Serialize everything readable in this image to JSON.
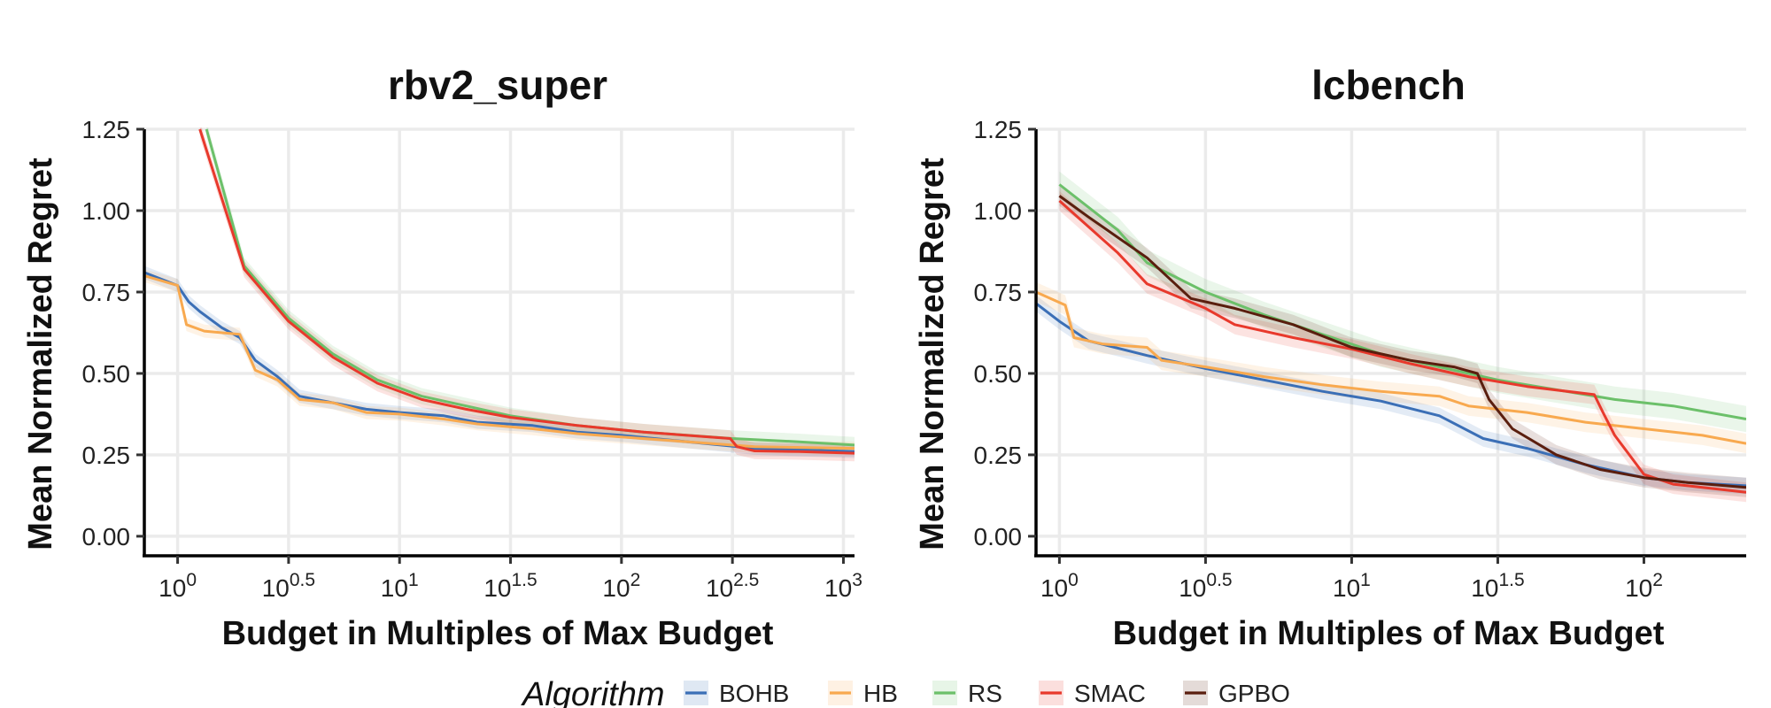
{
  "chart_data": [
    {
      "type": "line",
      "title": "rbv2_super",
      "xlabel": "Budget in Multiples of Max Budget",
      "ylabel": "Mean Normalized Regret",
      "x_scale": "log10",
      "xlim_log10": [
        -0.15,
        3.05
      ],
      "ylim": [
        -0.06,
        1.25
      ],
      "x_ticks": [
        {
          "log10": 0,
          "base": "10",
          "exp": "0"
        },
        {
          "log10": 0.5,
          "base": "10",
          "exp": "0.5"
        },
        {
          "log10": 1,
          "base": "10",
          "exp": "1"
        },
        {
          "log10": 1.5,
          "base": "10",
          "exp": "1.5"
        },
        {
          "log10": 2,
          "base": "10",
          "exp": "2"
        },
        {
          "log10": 2.5,
          "base": "10",
          "exp": "2.5"
        },
        {
          "log10": 3,
          "base": "10",
          "exp": "3"
        }
      ],
      "y_ticks": [
        {
          "value": 0.0,
          "label": "0.00"
        },
        {
          "value": 0.25,
          "label": "0.25"
        },
        {
          "value": 0.5,
          "label": "0.50"
        },
        {
          "value": 0.75,
          "label": "0.75"
        },
        {
          "value": 1.0,
          "label": "1.00"
        },
        {
          "value": 1.25,
          "label": "1.25"
        }
      ],
      "grid": true,
      "series": [
        {
          "name": "BOHB",
          "points": [
            [
              -0.15,
              0.81
            ],
            [
              0,
              0.77
            ],
            [
              0.05,
              0.72
            ],
            [
              0.1,
              0.69
            ],
            [
              0.2,
              0.64
            ],
            [
              0.28,
              0.61
            ],
            [
              0.35,
              0.54
            ],
            [
              0.45,
              0.49
            ],
            [
              0.55,
              0.43
            ],
            [
              0.7,
              0.41
            ],
            [
              0.85,
              0.39
            ],
            [
              1.0,
              0.38
            ],
            [
              1.2,
              0.37
            ],
            [
              1.35,
              0.35
            ],
            [
              1.6,
              0.34
            ],
            [
              1.8,
              0.32
            ],
            [
              2.0,
              0.31
            ],
            [
              2.3,
              0.29
            ],
            [
              2.6,
              0.27
            ],
            [
              3.05,
              0.26
            ]
          ],
          "band": 0.02
        },
        {
          "name": "HB",
          "points": [
            [
              -0.15,
              0.8
            ],
            [
              0,
              0.77
            ],
            [
              0.04,
              0.65
            ],
            [
              0.12,
              0.63
            ],
            [
              0.28,
              0.62
            ],
            [
              0.35,
              0.51
            ],
            [
              0.45,
              0.48
            ],
            [
              0.55,
              0.42
            ],
            [
              0.7,
              0.41
            ],
            [
              0.85,
              0.38
            ],
            [
              1.0,
              0.375
            ],
            [
              1.2,
              0.36
            ],
            [
              1.35,
              0.345
            ],
            [
              1.6,
              0.33
            ],
            [
              1.8,
              0.315
            ],
            [
              2.0,
              0.305
            ],
            [
              2.3,
              0.29
            ],
            [
              2.6,
              0.275
            ],
            [
              3.05,
              0.27
            ]
          ],
          "band": 0.02
        },
        {
          "name": "RS",
          "points": [
            [
              0.13,
              1.25
            ],
            [
              0.3,
              0.83
            ],
            [
              0.5,
              0.67
            ],
            [
              0.7,
              0.56
            ],
            [
              0.9,
              0.48
            ],
            [
              1.1,
              0.43
            ],
            [
              1.3,
              0.4
            ],
            [
              1.5,
              0.37
            ],
            [
              1.8,
              0.34
            ],
            [
              2.1,
              0.32
            ],
            [
              2.5,
              0.3
            ],
            [
              2.8,
              0.29
            ],
            [
              3.05,
              0.28
            ]
          ],
          "band": 0.025
        },
        {
          "name": "SMAC",
          "points": [
            [
              0.1,
              1.25
            ],
            [
              0.3,
              0.82
            ],
            [
              0.5,
              0.66
            ],
            [
              0.7,
              0.55
            ],
            [
              0.9,
              0.47
            ],
            [
              1.1,
              0.42
            ],
            [
              1.3,
              0.39
            ],
            [
              1.5,
              0.365
            ],
            [
              1.8,
              0.34
            ],
            [
              2.1,
              0.32
            ],
            [
              2.49,
              0.3
            ],
            [
              2.52,
              0.275
            ],
            [
              2.6,
              0.262
            ],
            [
              2.8,
              0.26
            ],
            [
              3.05,
              0.255
            ]
          ],
          "band": 0.025
        }
      ]
    },
    {
      "type": "line",
      "title": "lcbench",
      "xlabel": "Budget in Multiples of Max Budget",
      "ylabel": "Mean Normalized Regret",
      "x_scale": "log10",
      "xlim_log10": [
        -0.08,
        2.35
      ],
      "ylim": [
        -0.06,
        1.25
      ],
      "x_ticks": [
        {
          "log10": 0,
          "base": "10",
          "exp": "0"
        },
        {
          "log10": 0.5,
          "base": "10",
          "exp": "0.5"
        },
        {
          "log10": 1,
          "base": "10",
          "exp": "1"
        },
        {
          "log10": 1.5,
          "base": "10",
          "exp": "1.5"
        },
        {
          "log10": 2,
          "base": "10",
          "exp": "2"
        }
      ],
      "y_ticks": [
        {
          "value": 0.0,
          "label": "0.00"
        },
        {
          "value": 0.25,
          "label": "0.25"
        },
        {
          "value": 0.5,
          "label": "0.50"
        },
        {
          "value": 0.75,
          "label": "0.75"
        },
        {
          "value": 1.0,
          "label": "1.00"
        },
        {
          "value": 1.25,
          "label": "1.25"
        }
      ],
      "grid": true,
      "series": [
        {
          "name": "BOHB",
          "points": [
            [
              -0.08,
              0.715
            ],
            [
              0,
              0.66
            ],
            [
              0.1,
              0.6
            ],
            [
              0.3,
              0.555
            ],
            [
              0.5,
              0.515
            ],
            [
              0.7,
              0.48
            ],
            [
              0.9,
              0.445
            ],
            [
              1.1,
              0.415
            ],
            [
              1.3,
              0.37
            ],
            [
              1.45,
              0.3
            ],
            [
              1.6,
              0.27
            ],
            [
              1.8,
              0.22
            ],
            [
              2.0,
              0.18
            ],
            [
              2.15,
              0.165
            ],
            [
              2.35,
              0.155
            ]
          ],
          "band": 0.025
        },
        {
          "name": "HB",
          "points": [
            [
              -0.08,
              0.75
            ],
            [
              0.02,
              0.71
            ],
            [
              0.05,
              0.61
            ],
            [
              0.15,
              0.59
            ],
            [
              0.3,
              0.58
            ],
            [
              0.35,
              0.54
            ],
            [
              0.5,
              0.52
            ],
            [
              0.7,
              0.49
            ],
            [
              0.9,
              0.465
            ],
            [
              1.1,
              0.445
            ],
            [
              1.3,
              0.43
            ],
            [
              1.4,
              0.4
            ],
            [
              1.6,
              0.38
            ],
            [
              1.8,
              0.35
            ],
            [
              2.0,
              0.33
            ],
            [
              2.2,
              0.31
            ],
            [
              2.35,
              0.285
            ]
          ],
          "band": 0.03
        },
        {
          "name": "RS",
          "points": [
            [
              0,
              1.08
            ],
            [
              0.2,
              0.94
            ],
            [
              0.3,
              0.84
            ],
            [
              0.5,
              0.75
            ],
            [
              0.7,
              0.68
            ],
            [
              0.9,
              0.62
            ],
            [
              1.1,
              0.56
            ],
            [
              1.3,
              0.52
            ],
            [
              1.5,
              0.48
            ],
            [
              1.7,
              0.45
            ],
            [
              1.9,
              0.42
            ],
            [
              2.1,
              0.4
            ],
            [
              2.35,
              0.36
            ]
          ],
          "band": 0.04
        },
        {
          "name": "SMAC",
          "points": [
            [
              0,
              1.03
            ],
            [
              0.2,
              0.87
            ],
            [
              0.3,
              0.775
            ],
            [
              0.5,
              0.7
            ],
            [
              0.6,
              0.65
            ],
            [
              0.8,
              0.61
            ],
            [
              1.0,
              0.575
            ],
            [
              1.2,
              0.53
            ],
            [
              1.4,
              0.49
            ],
            [
              1.6,
              0.46
            ],
            [
              1.83,
              0.435
            ],
            [
              1.86,
              0.38
            ],
            [
              1.9,
              0.31
            ],
            [
              1.95,
              0.25
            ],
            [
              2.0,
              0.19
            ],
            [
              2.1,
              0.16
            ],
            [
              2.2,
              0.15
            ],
            [
              2.35,
              0.135
            ]
          ],
          "band": 0.03
        },
        {
          "name": "GPBO",
          "points": [
            [
              0,
              1.045
            ],
            [
              0.1,
              0.98
            ],
            [
              0.3,
              0.855
            ],
            [
              0.45,
              0.73
            ],
            [
              0.6,
              0.7
            ],
            [
              0.8,
              0.65
            ],
            [
              1.0,
              0.58
            ],
            [
              1.2,
              0.54
            ],
            [
              1.35,
              0.52
            ],
            [
              1.43,
              0.5
            ],
            [
              1.47,
              0.42
            ],
            [
              1.55,
              0.33
            ],
            [
              1.7,
              0.25
            ],
            [
              1.85,
              0.205
            ],
            [
              2.0,
              0.18
            ],
            [
              2.15,
              0.165
            ],
            [
              2.35,
              0.15
            ]
          ],
          "band": 0.03
        }
      ]
    }
  ],
  "legend": {
    "title": "Algorithm",
    "position": "bottom",
    "entries": [
      "BOHB",
      "HB",
      "RS",
      "SMAC",
      "GPBO"
    ]
  },
  "colors": {
    "BOHB": "#3b6fb6",
    "HB": "#f8a94f",
    "RS": "#6cc06a",
    "SMAC": "#e8392c",
    "GPBO": "#5a1e0e"
  }
}
